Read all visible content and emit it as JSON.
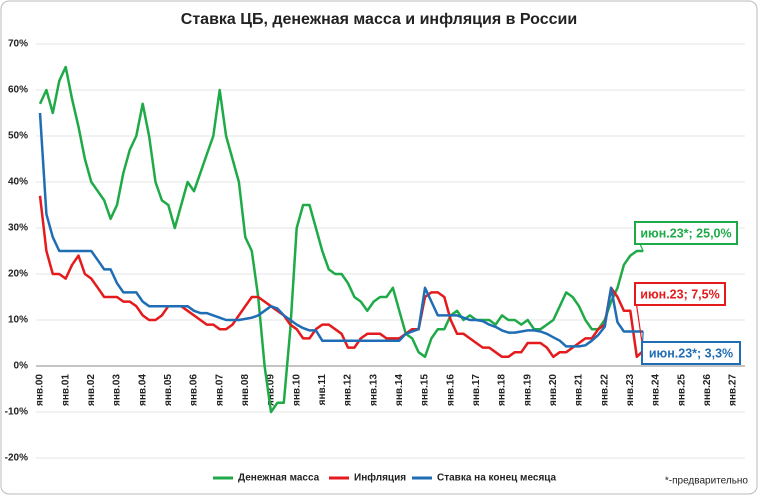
{
  "chart_data": {
    "type": "line",
    "title": "Ставка ЦБ, денежная масса и инфляция в России",
    "categories": [
      "янв.00",
      null,
      null,
      null,
      "янв.01",
      null,
      null,
      null,
      "янв.02",
      null,
      null,
      null,
      "янв.03",
      null,
      null,
      null,
      "янв.04",
      null,
      null,
      null,
      "янв.05",
      null,
      null,
      null,
      "янв.06",
      null,
      null,
      null,
      "янв.07",
      null,
      null,
      null,
      "янв.08",
      null,
      null,
      null,
      "янв.09",
      null,
      null,
      null,
      "янв.10",
      null,
      null,
      null,
      "янв.11",
      null,
      null,
      null,
      "янв.12",
      null,
      null,
      null,
      "янв.13",
      null,
      null,
      null,
      "янв.14",
      null,
      null,
      null,
      "янв.15",
      null,
      null,
      null,
      "янв.16",
      null,
      null,
      null,
      "янв.17",
      null,
      null,
      null,
      "янв.18",
      null,
      null,
      null,
      "янв.19",
      null,
      null,
      null,
      "янв.20",
      null,
      null,
      null,
      "янв.21",
      null,
      null,
      null,
      "янв.22",
      null,
      null,
      null,
      "янв.23",
      null,
      null,
      null,
      "янв.24",
      null,
      null,
      null,
      "янв.25",
      null,
      null,
      null,
      "янв.26",
      null,
      null,
      null,
      "янв.27"
    ],
    "series": [
      {
        "name": "Денежная масса",
        "color": "#1faa48",
        "values": [
          57,
          60,
          55,
          62,
          65,
          58,
          52,
          45,
          40,
          38,
          36,
          32,
          35,
          42,
          47,
          50,
          57,
          50,
          40,
          36,
          35,
          30,
          35,
          40,
          38,
          42,
          46,
          50,
          60,
          50,
          45,
          40,
          28,
          25,
          15,
          0,
          -10,
          -8,
          -8,
          8,
          30,
          35,
          35,
          30,
          25,
          21,
          20,
          20,
          18,
          15,
          14,
          12,
          14,
          15,
          15,
          17,
          12,
          7,
          6,
          3,
          2,
          6,
          8,
          8,
          11,
          12,
          10,
          11,
          10,
          10,
          10,
          9,
          11,
          10,
          10,
          9,
          10,
          8,
          8,
          9,
          10,
          13,
          16,
          15,
          13,
          10,
          8,
          8,
          10,
          14,
          17,
          22,
          24,
          25,
          25,
          null,
          null,
          null,
          null,
          null,
          null,
          null,
          null,
          null,
          null,
          null,
          null,
          null,
          null
        ]
      },
      {
        "name": "Инфляция",
        "color": "#e41a1c",
        "values": [
          37,
          25,
          20,
          20,
          19,
          22,
          24,
          20,
          19,
          17,
          15,
          15,
          15,
          14,
          14,
          13,
          11,
          10,
          10,
          11,
          13,
          13,
          13,
          12,
          11,
          10,
          9,
          9,
          8,
          8,
          9,
          11,
          13,
          15,
          15,
          14,
          13,
          12,
          11,
          9,
          8,
          6,
          6,
          8,
          9,
          9,
          8,
          7,
          4,
          4,
          6,
          7,
          7,
          7,
          6,
          6,
          6,
          7,
          8,
          8,
          15,
          16,
          16,
          15,
          10,
          7,
          7,
          6,
          5,
          4,
          4,
          3,
          2,
          2,
          3,
          3,
          5,
          5,
          5,
          4,
          2,
          3,
          3,
          4,
          5,
          6,
          6,
          8,
          9,
          17,
          15,
          12,
          12,
          2,
          3.3,
          null,
          null,
          null,
          null,
          null,
          null,
          null,
          null,
          null,
          null,
          null,
          null,
          null,
          null
        ]
      },
      {
        "name": "Ставка на конец месяца",
        "color": "#1f6db5",
        "values": [
          55,
          33,
          28,
          25,
          25,
          25,
          25,
          25,
          25,
          23,
          21,
          21,
          18,
          16,
          16,
          16,
          14,
          13,
          13,
          13,
          13,
          13,
          13,
          13,
          12,
          11.5,
          11.5,
          11,
          10.5,
          10,
          10,
          10,
          10.25,
          10.5,
          11,
          12,
          13,
          12.5,
          11,
          10,
          9,
          8.25,
          7.75,
          7.75,
          5.5,
          5.5,
          5.5,
          5.5,
          5.5,
          5.5,
          5.5,
          5.5,
          5.5,
          5.5,
          5.5,
          5.5,
          5.5,
          7,
          7.5,
          8,
          17,
          14,
          11,
          11,
          11,
          11,
          10.5,
          10,
          10,
          9.75,
          9,
          8.5,
          7.75,
          7.25,
          7.25,
          7.5,
          7.75,
          7.75,
          7.5,
          7,
          6.25,
          5.5,
          4.25,
          4.25,
          4.25,
          4.5,
          5.5,
          6.75,
          8.5,
          17,
          9.5,
          7.5,
          7.5,
          7.5,
          7.5,
          null,
          null,
          null,
          null,
          null,
          null,
          null,
          null,
          null,
          null,
          null,
          null,
          null,
          null
        ]
      }
    ],
    "annotations": [
      "июн.23*; 25,0%",
      "июн.23; 7,5%",
      "июн.23*; 3,3%"
    ],
    "footnote": "*-предварительно",
    "ylim": [
      -20,
      70
    ],
    "yticks": [
      {
        "value": -20,
        "label": "-20%"
      },
      {
        "value": -10,
        "label": "-10%"
      },
      {
        "value": 0,
        "label": "0%"
      },
      {
        "value": 10,
        "label": "10%"
      },
      {
        "value": 20,
        "label": "20%"
      },
      {
        "value": 30,
        "label": "30%"
      },
      {
        "value": 40,
        "label": "40%"
      },
      {
        "value": 50,
        "label": "50%"
      },
      {
        "value": 60,
        "label": "60%"
      },
      {
        "value": 70,
        "label": "70%"
      }
    ],
    "grid": true
  }
}
